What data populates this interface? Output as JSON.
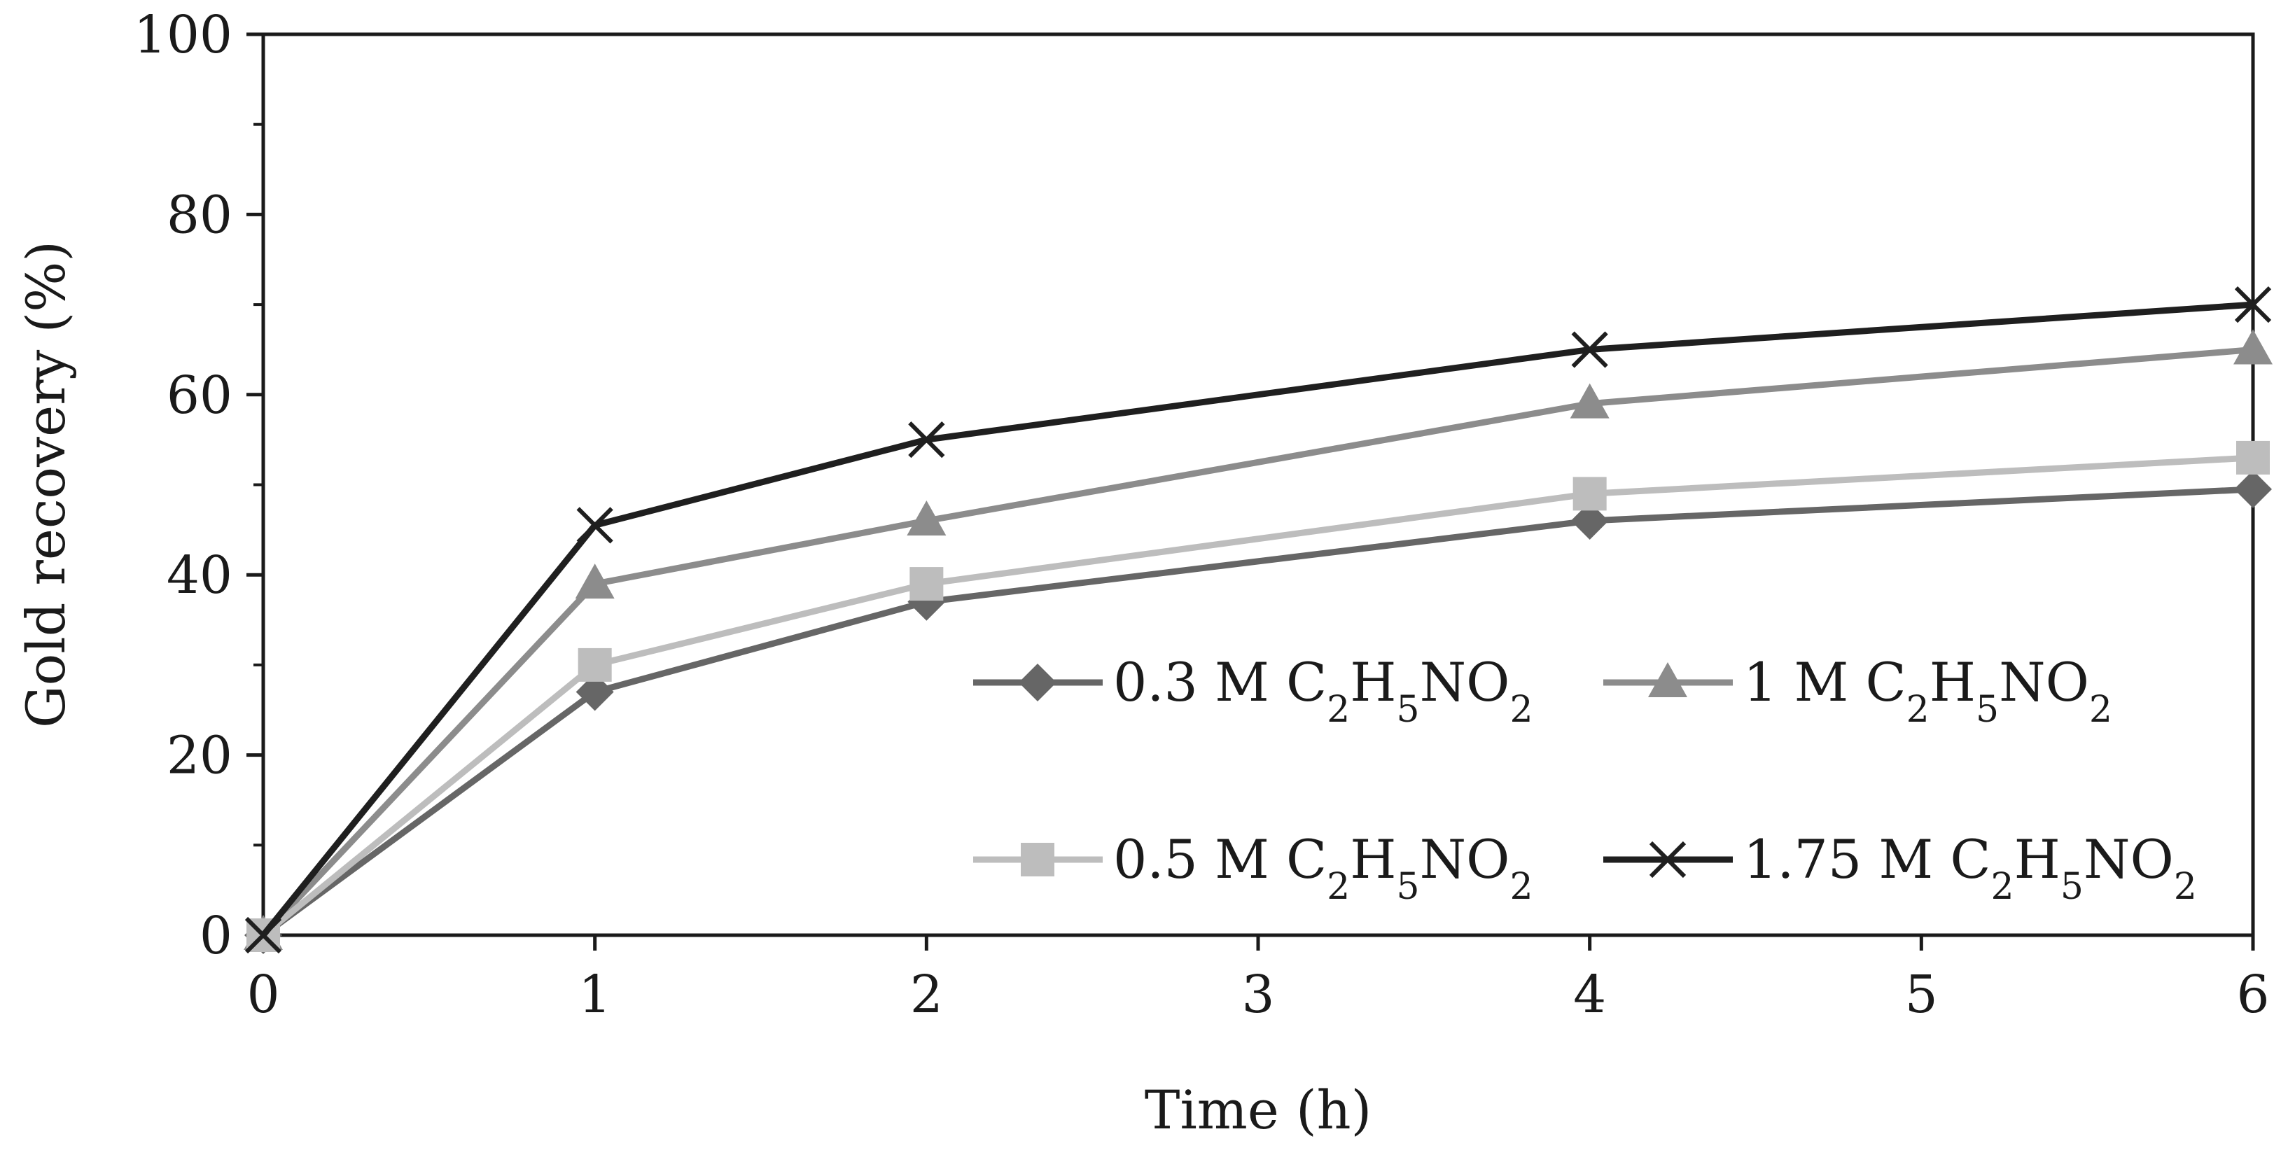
{
  "chart_data": {
    "type": "line",
    "title": "",
    "xlabel": "Time (h)",
    "ylabel": "Gold recovery (%)",
    "categories": [
      "0",
      "1",
      "2",
      "3",
      "4",
      "5",
      "6"
    ],
    "ylim": [
      0,
      100
    ],
    "yticks": [
      "0",
      "20",
      "40",
      "60",
      "80",
      "100"
    ],
    "legend_position": "inside-lower-right",
    "series": [
      {
        "name": "0.3 M C2H5NO2",
        "label_parts": {
          "prefix": "0.3 M C",
          "s1": "2",
          "mid": "H",
          "s2": "5",
          "suffix": "NO",
          "s3": "2"
        },
        "marker": "diamond",
        "color": "#666666",
        "x": [
          0,
          1,
          2,
          4,
          6
        ],
        "values": [
          0,
          27,
          37,
          46,
          49.5
        ]
      },
      {
        "name": "1 M C2H5NO2",
        "label_parts": {
          "prefix": "1 M C",
          "s1": "2",
          "mid": "H",
          "s2": "5",
          "suffix": "NO",
          "s3": "2"
        },
        "marker": "triangle",
        "color": "#8c8c8c",
        "x": [
          0,
          1,
          2,
          4,
          6
        ],
        "values": [
          0,
          39,
          46,
          59,
          65
        ]
      },
      {
        "name": "0.5 M C2H5NO2",
        "label_parts": {
          "prefix": "0.5 M C",
          "s1": "2",
          "mid": "H",
          "s2": "5",
          "suffix": "NO",
          "s3": "2"
        },
        "marker": "square",
        "color": "#bdbdbd",
        "x": [
          0,
          1,
          2,
          4,
          6
        ],
        "values": [
          0,
          30,
          39,
          49,
          53
        ]
      },
      {
        "name": "1.75 M C2H5NO2",
        "label_parts": {
          "prefix": "1.75 M C",
          "s1": "2",
          "mid": "H",
          "s2": "5",
          "suffix": "NO",
          "s3": "2"
        },
        "marker": "x",
        "color": "#1f1f1f",
        "x": [
          0,
          1,
          2,
          4,
          6
        ],
        "values": [
          0,
          45.5,
          55,
          65,
          70
        ]
      }
    ]
  }
}
